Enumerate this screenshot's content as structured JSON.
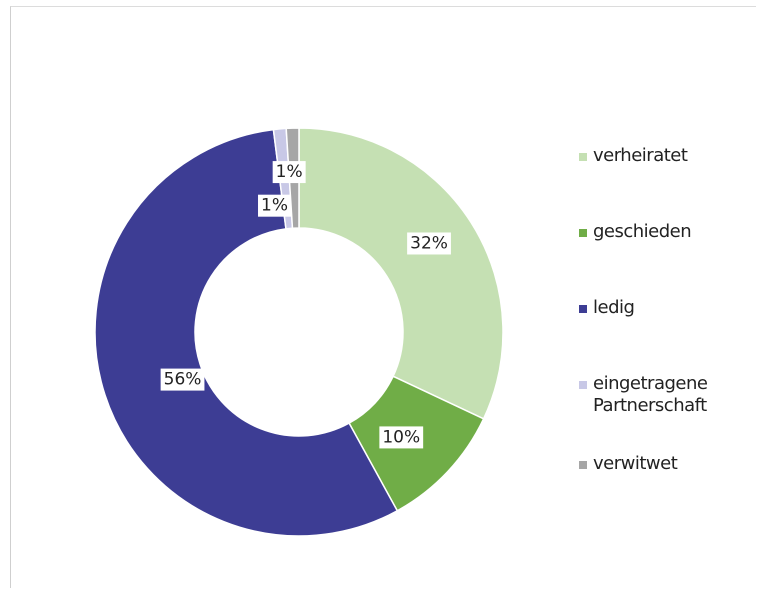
{
  "chart_data": {
    "type": "donut",
    "categories": [
      "verheiratet",
      "geschieden",
      "ledig",
      "eingetragene\nPartnerschaft",
      "verwitwet"
    ],
    "values": [
      32,
      10,
      56,
      1,
      1
    ],
    "value_labels": [
      "32%",
      "10%",
      "56%",
      "1%",
      "1%"
    ],
    "colors": [
      "#c5e0b3",
      "#70ad47",
      "#3d3d94",
      "#c8c8e6",
      "#a6a6a6"
    ],
    "legend_position": "right"
  }
}
